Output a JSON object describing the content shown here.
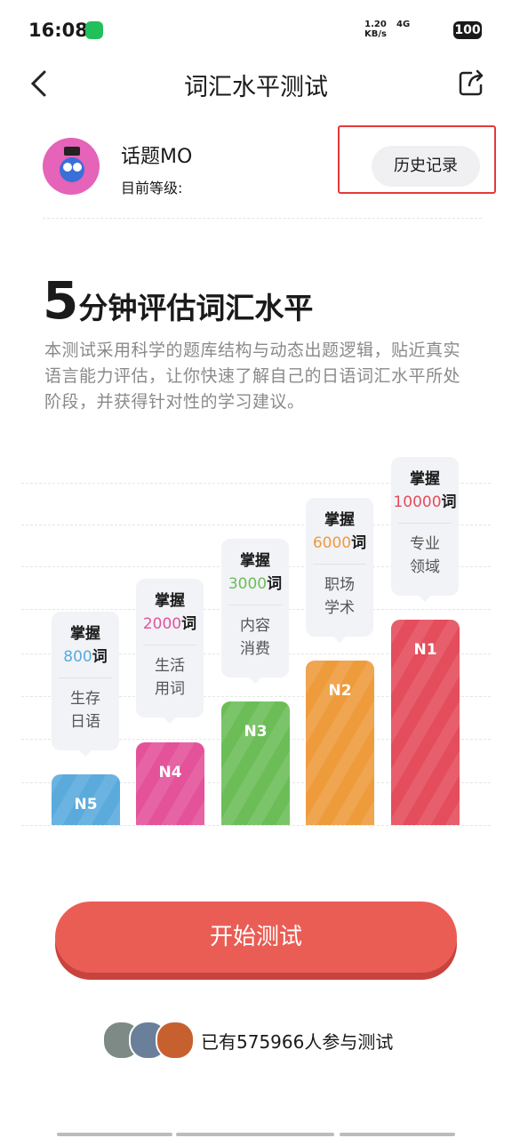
{
  "status_bar": {
    "time": "16:08",
    "speed": "1.20",
    "speed_unit": "KB/s",
    "network": "4G",
    "battery": "100"
  },
  "header": {
    "title": "词汇水平测试"
  },
  "profile": {
    "name": "话题MO",
    "level_label": "目前等级:",
    "history_button": "历史记录"
  },
  "intro": {
    "headline_number": "5",
    "headline": "分钟评估词汇水平",
    "description": "本测试采用科学的题库结构与动态出题逻辑，贴近真实语言能力评估，让你快速了解自己的日语词汇水平所处阶段，并获得针对性的学习建议。"
  },
  "levels": [
    {
      "name": "N5",
      "label": "掌握",
      "count": "800",
      "unit": "词",
      "topic": [
        "生存",
        "日语"
      ],
      "color": "#5aaadc"
    },
    {
      "name": "N4",
      "label": "掌握",
      "count": "2000",
      "unit": "词",
      "topic": [
        "生活",
        "用词"
      ],
      "color": "#e4529a"
    },
    {
      "name": "N3",
      "label": "掌握",
      "count": "3000",
      "unit": "词",
      "topic": [
        "内容",
        "消费"
      ],
      "color": "#6cbd58"
    },
    {
      "name": "N2",
      "label": "掌握",
      "count": "6000",
      "unit": "词",
      "topic": [
        "职场",
        "学术"
      ],
      "color": "#ee9b3c"
    },
    {
      "name": "N1",
      "label": "掌握",
      "count": "10000",
      "unit": "词",
      "topic": [
        "专业",
        "领域"
      ],
      "color": "#e44d5c"
    }
  ],
  "start_button": "开始测试",
  "participants": "已有575966人参与测试"
}
